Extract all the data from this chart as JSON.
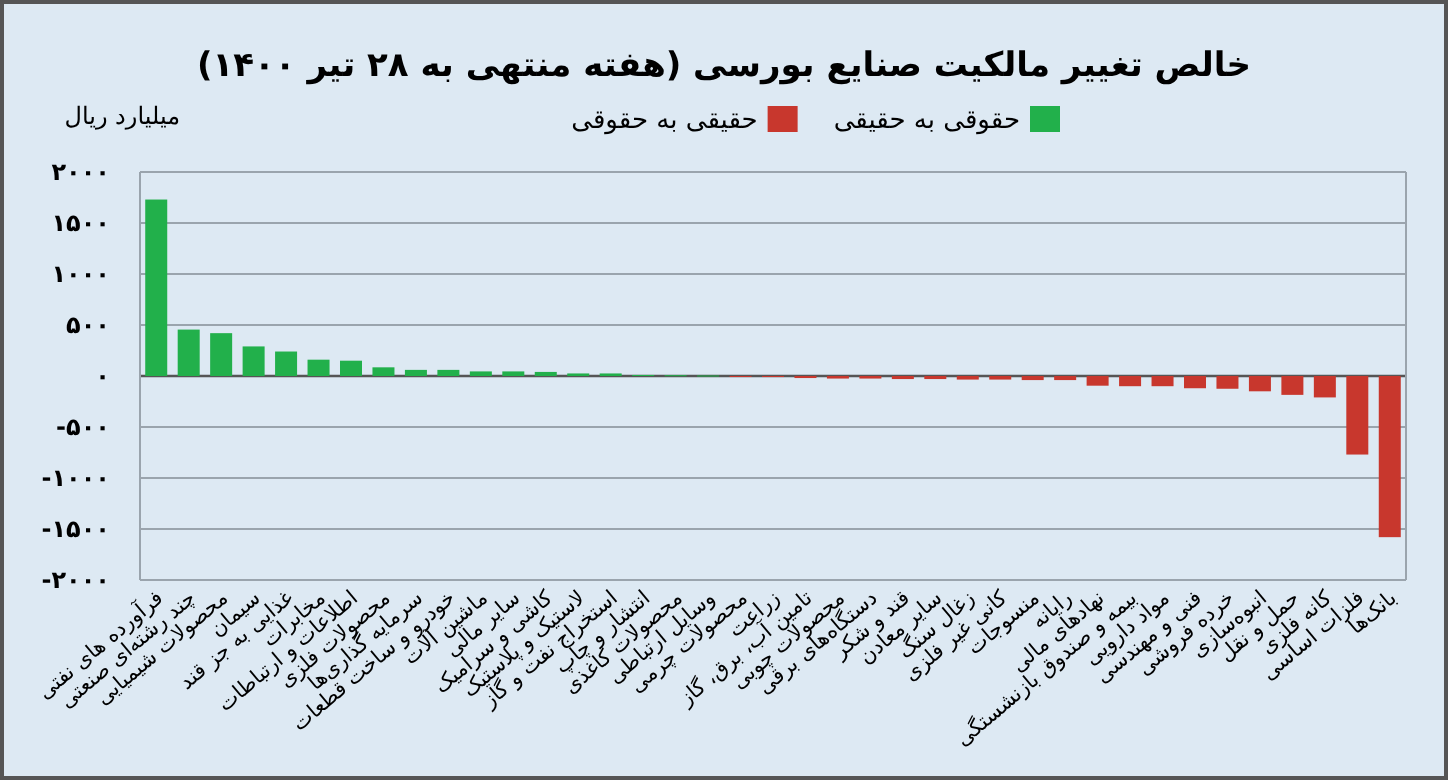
{
  "chart_data": {
    "type": "bar",
    "title": "خالص تغییر مالکیت صنایع بورسی (هفته منتهی به ۲۸ تیر ۱۴۰۰)",
    "ylabel": "میلیارد ریال",
    "categories": [
      "فرآورده های نفتی",
      "چند رشته‌ای صنعتی",
      "محصولات شیمیایی",
      "سیمان",
      "غذایی به جز قند",
      "مخابرات",
      "اطلاعات و ارتباطات",
      "محصولات فلزی",
      "سرمایه گذاری‌ها",
      "خودرو و ساخت قطعات",
      "ماشین آلات",
      "سایر مالی",
      "کاشی و سرامیک",
      "لاستیک و پلاستیک",
      "استخراج نفت و گاز",
      "انتشار و چاپ",
      "محصولات کاغذی",
      "وسایل ارتباطی",
      "محصولات چرمی",
      "زراعت",
      "تامین آب، برق، گاز",
      "محصولات چوبی",
      "دستگاه‌های برقی",
      "قند و شکر",
      "سایر معادن",
      "زغال سنگ",
      "کانی غیر فلزی",
      "منسوجات",
      "رایانه",
      "نهادهای مالی",
      "بیمه و صندوق بازنشستگی",
      "مواد دارویی",
      "فنی و مهندسی",
      "خرده فروشی",
      "انبوه‌سازی",
      "حمل و نقل",
      "کانه فلزی",
      "فلزات اساسی",
      "بانک‌ها"
    ],
    "series": [
      {
        "name": "حقوقی به حقیقی",
        "color": "#22b04b",
        "values": [
          1730,
          455,
          420,
          290,
          240,
          160,
          150,
          85,
          60,
          60,
          45,
          45,
          40,
          25,
          25,
          10,
          8,
          5,
          null,
          null,
          null,
          null,
          null,
          null,
          null,
          null,
          null,
          null,
          null,
          null,
          null,
          null,
          null,
          null,
          null,
          null,
          null,
          null,
          null
        ]
      },
      {
        "name": "حقیقی به حقوقی",
        "color": "#c8372d",
        "values": [
          null,
          null,
          null,
          null,
          null,
          null,
          null,
          null,
          null,
          null,
          null,
          null,
          null,
          null,
          null,
          null,
          null,
          null,
          -5,
          -10,
          -20,
          -25,
          -25,
          -30,
          -30,
          -35,
          -35,
          -40,
          -40,
          -95,
          -100,
          -100,
          -120,
          -125,
          -150,
          -185,
          -210,
          -770,
          -1580
        ]
      }
    ],
    "ylim": [
      -2000,
      2000
    ],
    "yticks": [
      {
        "value": 2000,
        "label": "۲۰۰۰"
      },
      {
        "value": 1500,
        "label": "۱۵۰۰"
      },
      {
        "value": 1000,
        "label": "۱۰۰۰"
      },
      {
        "value": 500,
        "label": "۵۰۰"
      },
      {
        "value": 0,
        "label": "۰"
      },
      {
        "value": -500,
        "label": "-۵۰۰"
      },
      {
        "value": -1000,
        "label": "-۱۰۰۰"
      },
      {
        "value": -1500,
        "label": "-۱۵۰۰"
      },
      {
        "value": -2000,
        "label": "-۲۰۰۰"
      }
    ],
    "grid": "y",
    "legend": "top"
  }
}
